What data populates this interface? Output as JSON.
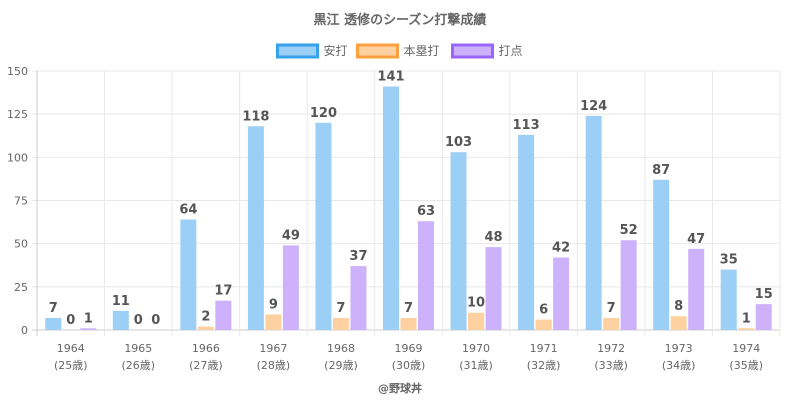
{
  "chart_data": {
    "type": "bar",
    "title": "黒江 透修のシーズン打撃成績",
    "categories": [
      "1964",
      "1965",
      "1966",
      "1967",
      "1968",
      "1969",
      "1970",
      "1971",
      "1972",
      "1973",
      "1974"
    ],
    "category_sublabels": [
      "(25歳)",
      "(26歳)",
      "(27歳)",
      "(28歳)",
      "(29歳)",
      "(30歳)",
      "(31歳)",
      "(32歳)",
      "(33歳)",
      "(34歳)",
      "(35歳)"
    ],
    "series": [
      {
        "name": "安打",
        "values": [
          7,
          11,
          64,
          118,
          120,
          141,
          103,
          113,
          124,
          87,
          35
        ],
        "color": "#9ccff6",
        "legend_border": "#36a2eb"
      },
      {
        "name": "本塁打",
        "values": [
          0,
          0,
          2,
          9,
          7,
          7,
          10,
          6,
          7,
          8,
          1
        ],
        "color": "#ffd1a1",
        "legend_border": "#ff9f40"
      },
      {
        "name": "打点",
        "values": [
          1,
          0,
          17,
          49,
          37,
          63,
          48,
          42,
          52,
          47,
          15
        ],
        "color": "#cdb2fb",
        "legend_border": "#9966ff"
      }
    ],
    "y_ticks": [
      "0",
      "25",
      "50",
      "75",
      "100",
      "125",
      "150"
    ],
    "ylim": [
      0,
      150
    ],
    "grid": true,
    "legend_position": "top",
    "xlabel": "@野球丼",
    "ylabel": ""
  }
}
